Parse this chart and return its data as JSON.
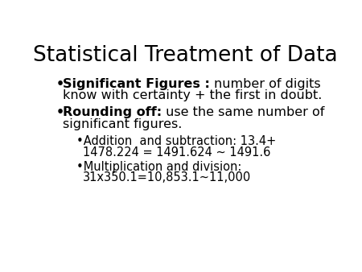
{
  "title": "Statistical Treatment of Data",
  "title_fontsize": 19,
  "background_color": "#ffffff",
  "text_color": "#000000",
  "body_fontsize": 11.5,
  "sub_fontsize": 10.5,
  "bullet1_bold": "Significant Figures : ",
  "bullet1_normal1": "number of digits",
  "bullet1_normal2": "know with certainty + the first in doubt.",
  "bullet2_bold": "Rounding off:",
  "bullet2_normal1": " use the same number of",
  "bullet2_normal2": "significant figures.",
  "sub1_line1_bullet": "•Addition  and subtraction: 13.4+",
  "sub1_line2": "1478.224 = 1491.624 ~ 1491.6",
  "sub2_line1_bullet": "•Multiplication and division:",
  "sub2_line2": "31x350.1=10,853.1~11,000"
}
